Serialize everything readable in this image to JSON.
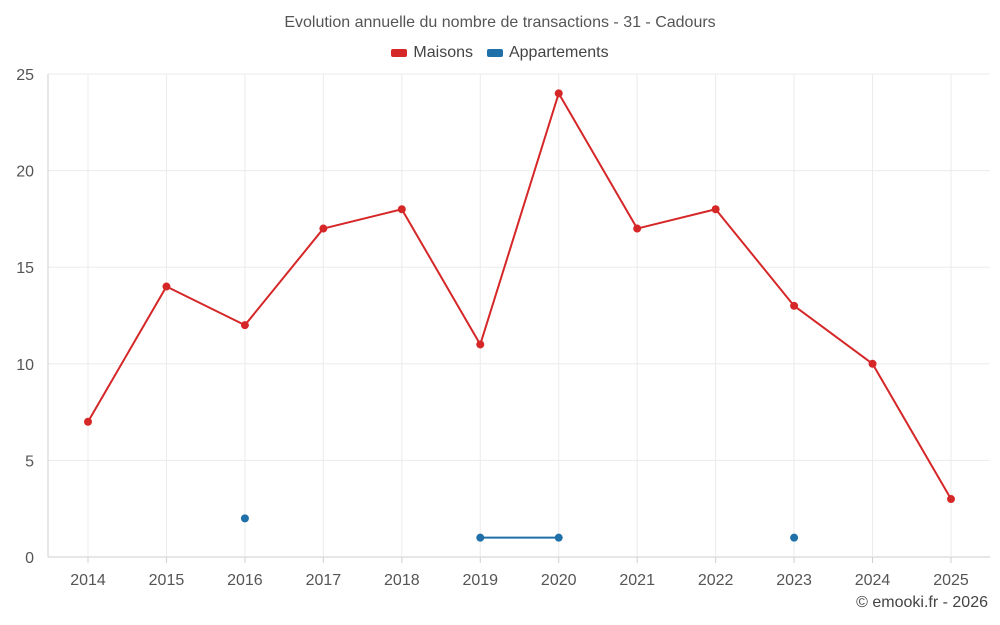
{
  "chart_data": {
    "type": "line",
    "title": "Evolution annuelle du nombre de transactions - 31 - Cadours",
    "xlabel": "",
    "ylabel": "",
    "categories": [
      "2014",
      "2015",
      "2016",
      "2017",
      "2018",
      "2019",
      "2020",
      "2021",
      "2022",
      "2023",
      "2024",
      "2025"
    ],
    "ylim": [
      0,
      25
    ],
    "yticks": [
      0,
      5,
      10,
      15,
      20,
      25
    ],
    "grid": true,
    "legend_position": "top-center",
    "series": [
      {
        "name": "Maisons",
        "color": "#d62728",
        "values": [
          7,
          14,
          12,
          17,
          18,
          11,
          24,
          17,
          18,
          13,
          10,
          3
        ]
      },
      {
        "name": "Appartements",
        "color": "#1f6fa8",
        "values": [
          null,
          null,
          2,
          null,
          null,
          1,
          1,
          null,
          null,
          1,
          null,
          null
        ]
      }
    ]
  },
  "footer": {
    "credit": "© emooki.fr - 2026"
  }
}
